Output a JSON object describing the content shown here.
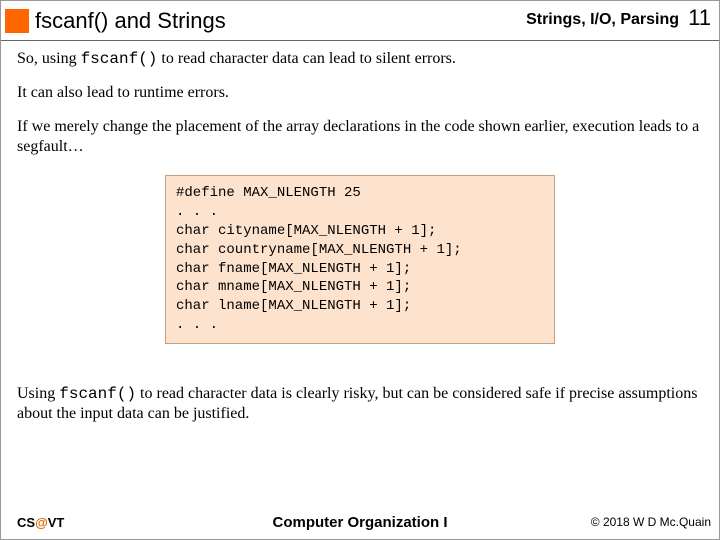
{
  "header": {
    "accent_color": "#ff6600",
    "title": "fscanf() and Strings",
    "subtitle": "Strings, I/O, Parsing",
    "page_number": "11"
  },
  "paragraphs": {
    "p1_a": "So, using ",
    "p1_code": "fscanf()",
    "p1_b": " to read character data can lead to silent errors.",
    "p2": "It can also lead to runtime errors.",
    "p3": "If we merely change the placement of the array declarations in the code shown earlier, execution leads to a segfault…",
    "p4_a": "Using ",
    "p4_code": "fscanf()",
    "p4_b": " to read character data is clearly risky, but can be considered safe if precise assumptions about the input data can be justified."
  },
  "code": {
    "background_color": "#fde3ce",
    "border_color": "#c0a080",
    "font_family": "Courier New",
    "lines": [
      "#define MAX_NLENGTH 25",
      ". . .",
      "char cityname[MAX_NLENGTH + 1];",
      "char countryname[MAX_NLENGTH + 1];",
      "char fname[MAX_NLENGTH + 1];",
      "char mname[MAX_NLENGTH + 1];",
      "char lname[MAX_NLENGTH + 1];",
      ". . ."
    ]
  },
  "footer": {
    "left_a": "CS",
    "left_at": "@",
    "left_b": "VT",
    "mid": "Computer Organization I",
    "right": "© 2018 W D Mc.Quain"
  }
}
